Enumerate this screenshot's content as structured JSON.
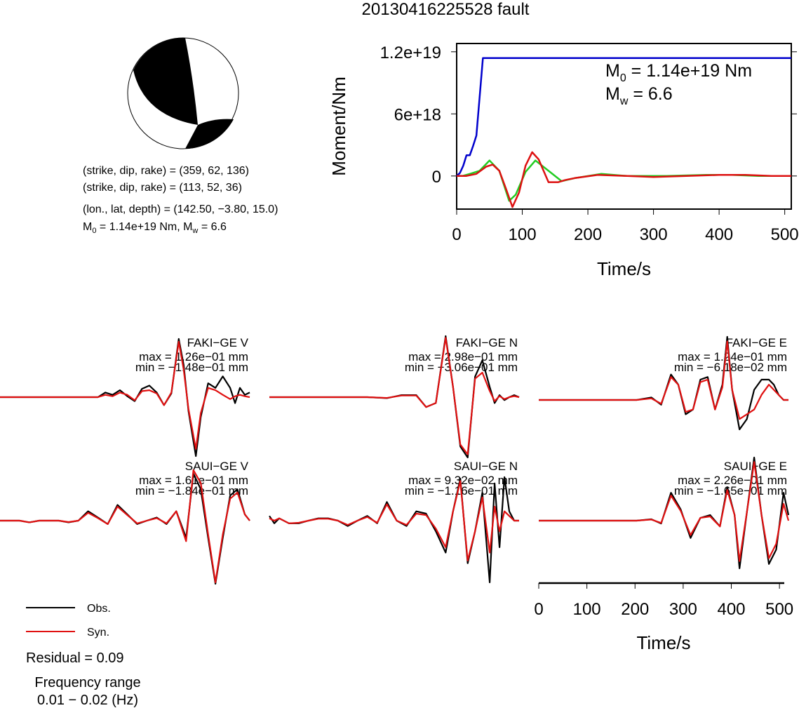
{
  "title": "20130416225528 fault",
  "mechanism": {
    "plane1": "(strike, dip, rake) = (359, 62, 136)",
    "plane2": "(strike, dip, rake) = (113, 52, 36)",
    "location": "(lon., lat, depth) = (142.50, −3.80, 15.0)",
    "moment_prefix": "M",
    "moment_sub": "0",
    "moment_value": " = 1.14e+19 Nm, M",
    "mw_sub": "w",
    "mw_value": " = 6.6"
  },
  "legend": {
    "obs_label": "Obs.",
    "syn_label": "Syn.",
    "residual": "Residual = 0.09",
    "freq_title": "Frequency range",
    "freq_value": "0.01 − 0.02 (Hz)"
  },
  "colors": {
    "obs": "#000000",
    "syn": "#e01010",
    "cumulative": "#0000cc",
    "rate_green": "#22cc22",
    "rate_red": "#dd1111",
    "beachball_dark": "#000000"
  },
  "chart_data": [
    {
      "type": "line",
      "title": "",
      "xlabel": "Time/s",
      "ylabel": "Moment/Nm",
      "xlim": [
        0,
        510
      ],
      "ylim": [
        -3.2e+18,
        1.28e+19
      ],
      "x_ticks": [
        0,
        100,
        200,
        300,
        400,
        500
      ],
      "x_tick_labels": [
        "0",
        "100",
        "200",
        "300",
        "400",
        "500"
      ],
      "y_ticks": [
        0,
        6e+18,
        1.2e+19
      ],
      "y_tick_labels": [
        "0",
        "6e+18",
        "1.2e+19"
      ],
      "annotation_m0": {
        "prefix": "M",
        "sub": "0",
        "value": " = 1.14e+19 Nm"
      },
      "annotation_mw": {
        "prefix": "M",
        "sub": "w",
        "value": " = 6.6"
      },
      "series": [
        {
          "color": "blue",
          "x": [
            0,
            5,
            10,
            15,
            20,
            25,
            30,
            35,
            40,
            45,
            510
          ],
          "y": [
            0,
            3e+17,
            1e+18,
            2e+18,
            2e+18,
            2.9e+18,
            3.9e+18,
            7.6e+18,
            1.14e+19,
            1.14e+19,
            1.14e+19
          ]
        },
        {
          "color": "green",
          "x": [
            0,
            10,
            20,
            35,
            50,
            65,
            80,
            90,
            105,
            120,
            140,
            160,
            180,
            220,
            260,
            320,
            380,
            420,
            460,
            510
          ],
          "y": [
            0,
            2e+16,
            2e+17,
            5e+17,
            1.5e+18,
            5e+17,
            -2.4e+18,
            -1.8e+18,
            4e+17,
            1.5e+18,
            5e+17,
            -5e+17,
            -2e+17,
            2e+17,
            0,
            0,
            1e+17,
            1e+17,
            0,
            0
          ]
        },
        {
          "color": "red",
          "x": [
            0,
            15,
            30,
            45,
            55,
            65,
            75,
            85,
            95,
            105,
            115,
            125,
            140,
            155,
            165,
            180,
            215,
            260,
            300,
            350,
            400,
            440,
            480,
            510
          ],
          "y": [
            0,
            1e+16,
            2e+17,
            9e+17,
            1.1e+18,
            5e+17,
            -1.2e+18,
            -3e+18,
            -1.6e+18,
            1e+18,
            2.3e+18,
            1.6e+18,
            -6e+17,
            -6e+17,
            -4e+17,
            -2e+17,
            1e+17,
            0,
            -1e+17,
            0,
            1e+17,
            1e+17,
            0,
            0
          ]
        }
      ]
    },
    {
      "type": "line",
      "title": "FAKI−GE V",
      "max_label": "max = 1.26e−01 mm",
      "min_label": "min = −1.48e−01 mm",
      "xlim": [
        0,
        510
      ],
      "ylim": [
        -0.148,
        0.126
      ],
      "series": [
        {
          "name": "Obs.",
          "x": [
            0,
            30,
            60,
            90,
            120,
            140,
            160,
            180,
            200,
            215,
            230,
            245,
            260,
            275,
            290,
            305,
            320,
            335,
            350,
            365,
            375,
            385,
            400,
            410,
            425,
            440,
            455,
            470,
            480,
            490,
            500,
            510
          ],
          "y": [
            0,
            0,
            0,
            0,
            0,
            0,
            0,
            0,
            0,
            0.01,
            0.005,
            0.015,
            0.002,
            -0.01,
            0.018,
            0.025,
            0.01,
            -0.02,
            0.008,
            0.126,
            0.07,
            -0.035,
            -0.148,
            -0.05,
            0.03,
            0.02,
            0.045,
            0.02,
            -0.015,
            0.02,
            0.005,
            0.01
          ]
        },
        {
          "name": "Syn.",
          "x": [
            0,
            30,
            60,
            90,
            120,
            140,
            160,
            180,
            200,
            215,
            230,
            245,
            260,
            275,
            290,
            305,
            320,
            335,
            350,
            365,
            375,
            385,
            400,
            410,
            425,
            440,
            455,
            470,
            480,
            490,
            500,
            510
          ],
          "y": [
            0,
            0,
            0,
            0,
            0,
            0,
            0,
            0,
            0,
            0.005,
            0.002,
            0.01,
            0.005,
            -0.008,
            0.013,
            0.015,
            0.008,
            -0.02,
            0.01,
            0.12,
            0.06,
            -0.03,
            -0.13,
            -0.04,
            0.02,
            0.015,
            0.005,
            -0.005,
            0.002,
            0.005,
            0.002,
            0.0
          ]
        }
      ]
    },
    {
      "type": "line",
      "title": "FAKI−GE N",
      "max_label": "max = 2.98e−01 mm",
      "min_label": "min = −3.06e−01 mm",
      "xlim": [
        0,
        510
      ],
      "ylim": [
        -0.306,
        0.298
      ],
      "series": [
        {
          "name": "Obs.",
          "x": [
            0,
            40,
            80,
            120,
            160,
            200,
            240,
            270,
            300,
            320,
            340,
            360,
            375,
            390,
            405,
            420,
            435,
            450,
            460,
            470,
            480,
            490,
            500,
            510
          ],
          "y": [
            0,
            0,
            0,
            0,
            0,
            0,
            -0.005,
            0.01,
            0.01,
            -0.05,
            -0.03,
            0.298,
            0.05,
            -0.25,
            -0.306,
            0.1,
            0.18,
            0.05,
            -0.03,
            0.01,
            -0.015,
            0.0,
            0.01,
            0.0
          ]
        },
        {
          "name": "Syn.",
          "x": [
            0,
            40,
            80,
            120,
            160,
            200,
            240,
            270,
            300,
            320,
            340,
            360,
            375,
            390,
            405,
            420,
            435,
            450,
            460,
            470,
            480,
            490,
            500,
            510
          ],
          "y": [
            0,
            0,
            0,
            0,
            0,
            0,
            -0.004,
            0.008,
            0.008,
            -0.05,
            -0.03,
            0.29,
            0.05,
            -0.24,
            -0.29,
            0.09,
            0.12,
            0.03,
            -0.02,
            0.005,
            -0.01,
            0.0,
            0.005,
            0.0
          ]
        }
      ]
    },
    {
      "type": "line",
      "title": "FAKI−GE E",
      "max_label": "max = 1.24e−01 mm",
      "min_label": "min = −6.18e−02 mm",
      "xlim": [
        0,
        510
      ],
      "ylim": [
        -0.0618,
        0.124
      ],
      "series": [
        {
          "name": "Obs.",
          "x": [
            0,
            40,
            80,
            120,
            160,
            200,
            230,
            250,
            270,
            285,
            300,
            315,
            330,
            345,
            360,
            375,
            385,
            395,
            410,
            425,
            440,
            455,
            470,
            480,
            490,
            500,
            510
          ],
          "y": [
            0,
            0,
            0,
            0,
            0,
            0,
            0.005,
            -0.01,
            0.05,
            0.03,
            -0.03,
            -0.02,
            0.04,
            0.045,
            -0.02,
            0.03,
            0.124,
            0.02,
            -0.0618,
            -0.04,
            0.02,
            0.04,
            0.04,
            0.03,
            0.01,
            0.0,
            0.0
          ]
        },
        {
          "name": "Syn.",
          "x": [
            0,
            40,
            80,
            120,
            160,
            200,
            230,
            250,
            270,
            285,
            300,
            315,
            330,
            345,
            360,
            375,
            385,
            395,
            410,
            425,
            440,
            455,
            470,
            480,
            490,
            500,
            510
          ],
          "y": [
            0,
            0,
            0,
            0,
            0,
            0,
            0.003,
            -0.008,
            0.045,
            0.03,
            -0.025,
            -0.02,
            0.035,
            0.04,
            -0.02,
            0.025,
            0.115,
            0.02,
            -0.04,
            -0.03,
            -0.02,
            0.01,
            0.03,
            0.02,
            0.01,
            0.0,
            0.0
          ]
        }
      ]
    },
    {
      "type": "line",
      "title": "SAUI−GE V",
      "max_label": "max = 1.61e−01 mm",
      "min_label": "min = −1.84e−01 mm",
      "xlim": [
        0,
        510
      ],
      "ylim": [
        -0.184,
        0.161
      ],
      "series": [
        {
          "name": "Obs.",
          "x": [
            0,
            40,
            60,
            80,
            100,
            120,
            140,
            160,
            180,
            200,
            220,
            240,
            260,
            280,
            300,
            320,
            340,
            360,
            380,
            395,
            410,
            425,
            440,
            455,
            470,
            485,
            500,
            510
          ],
          "y": [
            0,
            0,
            -0.005,
            0,
            0,
            0,
            -0.005,
            0,
            0.03,
            0.01,
            -0.01,
            0.05,
            0.02,
            -0.01,
            0.0,
            0.01,
            -0.01,
            0.03,
            -0.05,
            0.15,
            0.1,
            -0.05,
            -0.184,
            -0.05,
            0.08,
            0.1,
            0.02,
            0.0
          ]
        },
        {
          "name": "Syn.",
          "x": [
            0,
            40,
            60,
            80,
            100,
            120,
            140,
            160,
            180,
            200,
            220,
            240,
            260,
            280,
            300,
            320,
            340,
            360,
            380,
            395,
            410,
            425,
            440,
            455,
            470,
            485,
            500,
            510
          ],
          "y": [
            0,
            0,
            -0.005,
            0,
            0,
            0,
            -0.004,
            0,
            0.025,
            0.008,
            -0.01,
            0.045,
            0.018,
            -0.008,
            0.0,
            0.008,
            -0.008,
            0.03,
            -0.06,
            0.161,
            0.12,
            -0.04,
            -0.18,
            -0.04,
            0.07,
            0.09,
            0.02,
            0.0
          ]
        }
      ]
    },
    {
      "type": "line",
      "title": "SAUI−GE N",
      "max_label": "max = 9.32e−02 mm",
      "min_label": "min = −1.16e−01 mm",
      "xlim": [
        0,
        510
      ],
      "ylim": [
        -0.116,
        0.0932
      ],
      "series": [
        {
          "name": "Obs.",
          "x": [
            0,
            10,
            20,
            40,
            60,
            80,
            100,
            120,
            140,
            160,
            180,
            200,
            220,
            240,
            260,
            280,
            300,
            320,
            340,
            360,
            375,
            390,
            405,
            420,
            435,
            450,
            460,
            470,
            480,
            490,
            500,
            510
          ],
          "y": [
            0.01,
            -0.005,
            0.005,
            -0.005,
            -0.005,
            0,
            0.005,
            0.005,
            0.0,
            -0.01,
            0.0,
            0.01,
            -0.005,
            0.04,
            0.0,
            -0.01,
            0.02,
            0.015,
            -0.02,
            -0.06,
            0.02,
            0.09,
            -0.08,
            -0.02,
            0.06,
            -0.116,
            0.08,
            -0.05,
            0.0932,
            0.02,
            0.0,
            0.0
          ]
        },
        {
          "name": "Syn.",
          "x": [
            0,
            10,
            20,
            40,
            60,
            80,
            100,
            120,
            140,
            160,
            180,
            200,
            220,
            240,
            260,
            280,
            300,
            320,
            340,
            360,
            375,
            390,
            405,
            420,
            435,
            450,
            460,
            470,
            480,
            490,
            500,
            510
          ],
          "y": [
            0.005,
            0.0,
            0.005,
            -0.005,
            -0.004,
            0,
            0.004,
            0.004,
            0.0,
            -0.008,
            0.0,
            0.008,
            -0.004,
            0.035,
            0.0,
            -0.008,
            0.015,
            0.012,
            -0.015,
            -0.05,
            0.02,
            0.085,
            -0.075,
            -0.02,
            0.05,
            -0.06,
            0.03,
            -0.02,
            0.02,
            0.01,
            0.0,
            0.0
          ]
        }
      ]
    },
    {
      "type": "line",
      "title": "SAUI−GE E",
      "max_label": "max = 2.26e−01 mm",
      "min_label": "min = −1.65e−01 mm",
      "xlim": [
        0,
        510
      ],
      "ylim": [
        -0.165,
        0.226
      ],
      "series": [
        {
          "name": "Obs.",
          "x": [
            0,
            40,
            80,
            120,
            160,
            200,
            230,
            250,
            270,
            290,
            310,
            330,
            350,
            370,
            385,
            400,
            410,
            425,
            440,
            455,
            470,
            485,
            500,
            510
          ],
          "y": [
            0,
            0,
            0,
            0,
            0,
            0,
            0.005,
            -0.01,
            0.1,
            0.04,
            -0.06,
            0.01,
            0.02,
            -0.02,
            0.12,
            0.02,
            -0.165,
            0.03,
            0.226,
            0.02,
            -0.15,
            -0.1,
            0.1,
            0.02
          ]
        },
        {
          "name": "Syn.",
          "x": [
            0,
            40,
            80,
            120,
            160,
            200,
            230,
            250,
            270,
            290,
            310,
            330,
            350,
            370,
            385,
            400,
            410,
            425,
            440,
            455,
            470,
            485,
            500,
            510
          ],
          "y": [
            0,
            0,
            0,
            0,
            0,
            0,
            0.004,
            -0.008,
            0.09,
            0.035,
            -0.05,
            0.01,
            0.015,
            -0.02,
            0.11,
            0.02,
            -0.14,
            0.03,
            0.21,
            0.02,
            -0.13,
            -0.08,
            0.06,
            0.0
          ]
        }
      ]
    },
    {
      "type": "line",
      "xlabel": "Time/s",
      "xlim": [
        0,
        510
      ],
      "x_ticks": [
        0,
        100,
        200,
        300,
        400,
        500
      ],
      "x_tick_labels": [
        "0",
        "100",
        "200",
        "300",
        "400",
        "500"
      ]
    }
  ]
}
